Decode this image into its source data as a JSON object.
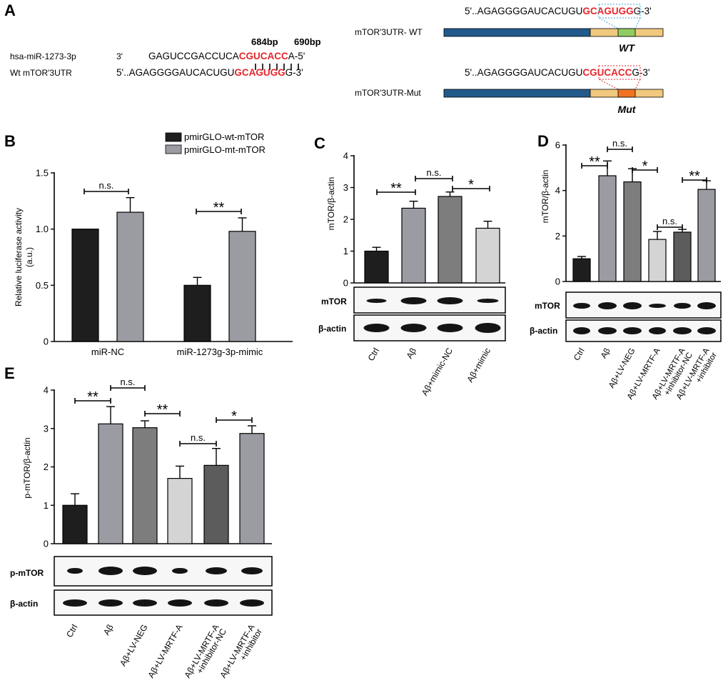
{
  "colors": {
    "black": "#000000",
    "red": "#e8262b",
    "bar_black": "#1e1e1e",
    "bar_gray": "#9b9ba3",
    "bar_dark": "#7d7d7d",
    "bar_light": "#d4d4d4",
    "bar_darkgray": "#5c5c5c",
    "utr_blue": "#215a8b",
    "utr_tan": "#f0c87e",
    "wt_green": "#90cc62",
    "mut_orange": "#ef7322"
  },
  "panelA": {
    "label": "A",
    "pos1": "684bp",
    "pos2": "690bp",
    "mirna_name": "hsa-miR-1273-3p",
    "mirna_dir": "3'",
    "mirna_pre": "GAGUCCGACCUCA",
    "mirna_seed": "CGUCACC",
    "mirna_post": "A-5'",
    "utr_name": "Wt mTOR'3UTR",
    "utr_pre": "5'..AGAGGGGAUCACUGU",
    "utr_seed": "GCAGUGG",
    "utr_post": "G-3'",
    "wt_seq_pre": "5'..AGAGGGGAUCACUGU",
    "wt_seq_seed": "GCAGUGG",
    "wt_seq_post": "G-3'",
    "wt_label": "mTOR'3UTR- WT",
    "wt_tag": "WT",
    "mut_seq_pre": "5'..AGAGGGGAUCACUGU",
    "mut_seq_seed": "CGUCACC",
    "mut_seq_post": "G-3'",
    "mut_label": "mTOR'3UTR-Mut",
    "mut_tag": "Mut"
  },
  "chart_data": [
    {
      "panel": "B",
      "type": "bar",
      "ylabel": "Relative luciferase activity (a.u.)",
      "ylabel_line1": "Relative luciferase activity",
      "ylabel_line2": "(a.u.)",
      "ylim": [
        0,
        1.5
      ],
      "yticks": [
        "0",
        "0.5",
        "1.0",
        "1.5"
      ],
      "categories": [
        "miR-NC",
        "miR-1273g-3p-mimic"
      ],
      "series": [
        {
          "name": "pmirGLO-wt-mTOR",
          "values": [
            1.0,
            0.5
          ],
          "errors": [
            0,
            0.07
          ]
        },
        {
          "name": "pmirGLO-mt-mTOR",
          "values": [
            1.15,
            0.98
          ],
          "errors": [
            0.13,
            0.12
          ]
        }
      ],
      "significance": [
        "n.s.",
        "**"
      ]
    },
    {
      "panel": "C",
      "type": "bar",
      "ylabel": "mTOR/β-actin",
      "ylim": [
        0,
        4
      ],
      "yticks": [
        "0",
        "1",
        "2",
        "3",
        "4"
      ],
      "categories": [
        "Ctrl",
        "Aβ",
        "Aβ+mimic-NC",
        "Aβ+mimic"
      ],
      "values": [
        1.0,
        2.35,
        2.72,
        1.72
      ],
      "errors": [
        0.12,
        0.22,
        0.14,
        0.22
      ],
      "significance": [
        "**",
        "n.s.",
        "*"
      ],
      "blot_labels": [
        "mTOR",
        "β-actin"
      ]
    },
    {
      "panel": "D",
      "type": "bar",
      "ylabel": "mTOR/β-actin",
      "ylim": [
        0,
        6
      ],
      "yticks": [
        "0",
        "2",
        "4",
        "6"
      ],
      "categories": [
        "Ctrl",
        "Aβ",
        "Aβ+LV-NEG",
        "Aβ+LV-MRTF-A",
        "Aβ+LV-MRTF-A +inhibitor-NC",
        "Aβ+LV-MRTF-A +inhibitor"
      ],
      "values": [
        1.0,
        4.65,
        4.38,
        1.85,
        2.17,
        4.05
      ],
      "errors": [
        0.1,
        0.65,
        0.58,
        0.35,
        0.12,
        0.38
      ],
      "significance": [
        "**",
        "n.s.",
        "*",
        "n.s.",
        "**"
      ],
      "blot_labels": [
        "mTOR",
        "β-actin"
      ]
    },
    {
      "panel": "E",
      "type": "bar",
      "ylabel": "p-mTOR/β-actin",
      "ylim": [
        0,
        4
      ],
      "yticks": [
        "0",
        "1",
        "2",
        "3",
        "4"
      ],
      "categories": [
        "Ctrl",
        "Aβ",
        "Aβ+LV-NEG",
        "Aβ+LV-MRTF-A",
        "Aβ+LV-MRTF-A +inhibitor-NC",
        "Aβ+LV-MRTF-A +inhibitor"
      ],
      "values": [
        1.0,
        3.12,
        3.02,
        1.7,
        2.04,
        2.87
      ],
      "errors": [
        0.3,
        0.45,
        0.18,
        0.32,
        0.44,
        0.2
      ],
      "significance": [
        "**",
        "n.s.",
        "**",
        "n.s.",
        "*"
      ],
      "blot_labels": [
        "p-mTOR",
        "β-actin"
      ]
    }
  ]
}
